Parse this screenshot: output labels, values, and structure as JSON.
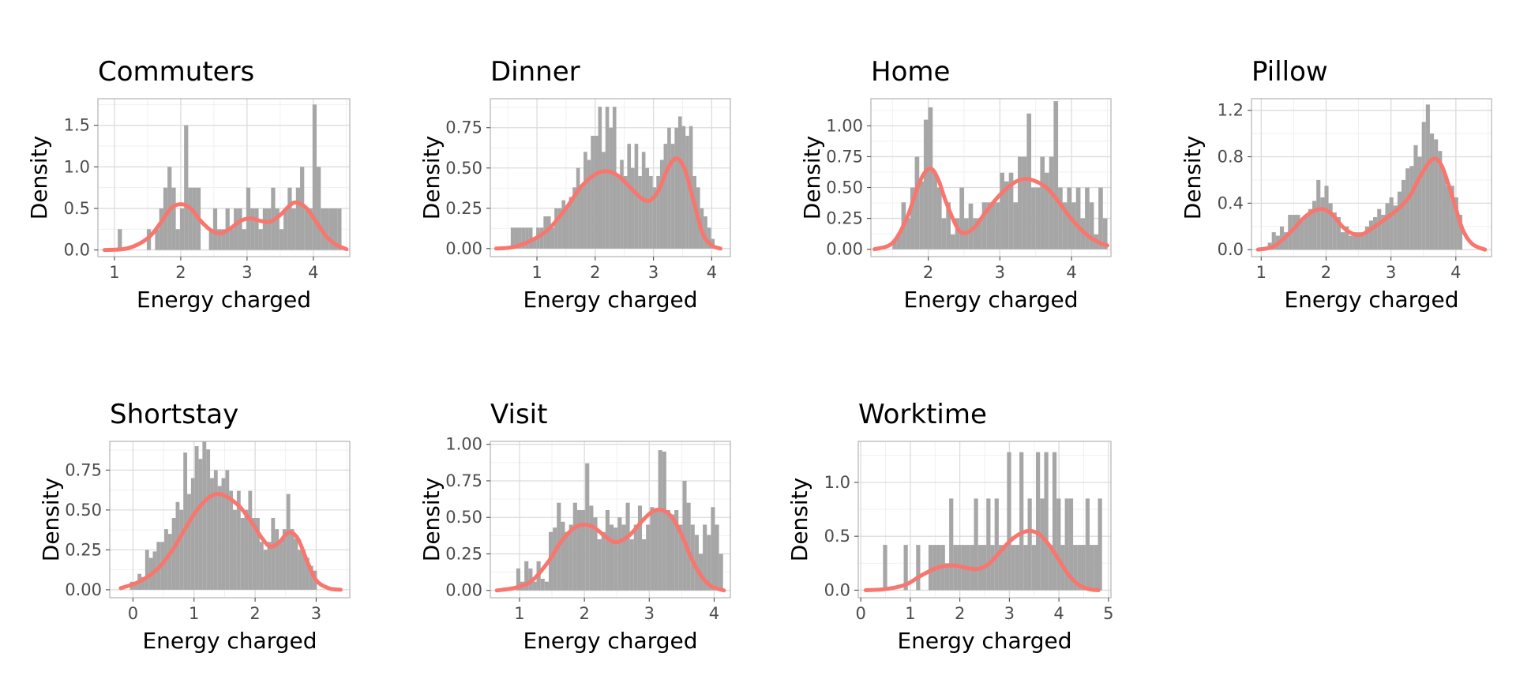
{
  "colors": {
    "bars": "#a6a6a6",
    "density": "#f8766d",
    "background": "#ffffff"
  },
  "chart_data": [
    {
      "type": "histogram+density",
      "title": "Commuters",
      "xlabel": "Energy charged",
      "ylabel": "Density",
      "xlim": [
        0.75,
        4.55
      ],
      "ylim": [
        -0.08,
        1.82
      ],
      "xticks": [
        1,
        2,
        3,
        4
      ],
      "xtick_labels": [
        "1",
        "2",
        "3",
        "4"
      ],
      "yticks": [
        0,
        0.5,
        1.0,
        1.5
      ],
      "ytick_labels": [
        "0.0",
        "0.5",
        "1.0",
        "1.5"
      ],
      "bins": {
        "start": 1.05,
        "width": 0.0625,
        "counts": [
          0.25,
          0,
          0,
          0,
          0,
          0,
          0,
          0.25,
          0,
          0.25,
          0.5,
          0.75,
          1.0,
          0.75,
          0.25,
          0.5,
          1.5,
          0.75,
          0.75,
          0.75,
          0,
          0,
          0.25,
          0.5,
          0.25,
          0.25,
          0.5,
          0.25,
          0.5,
          0.5,
          0.25,
          0.75,
          0.5,
          0.5,
          0.25,
          0.5,
          0.5,
          0.75,
          0.5,
          0.25,
          0.5,
          0.75,
          0.5,
          0.75,
          1.0,
          0.5,
          0.5,
          1.75,
          1.0,
          0.5,
          0.5,
          0.5,
          0.5,
          0.5
        ]
      },
      "density": {
        "x": [
          0.85,
          1.2,
          1.5,
          1.7,
          1.85,
          2.0,
          2.15,
          2.3,
          2.45,
          2.6,
          2.75,
          2.9,
          3.05,
          3.2,
          3.35,
          3.5,
          3.65,
          3.75,
          3.9,
          4.05,
          4.2,
          4.35,
          4.5
        ],
        "y": [
          0.0,
          0.02,
          0.14,
          0.33,
          0.5,
          0.55,
          0.5,
          0.35,
          0.24,
          0.2,
          0.26,
          0.35,
          0.38,
          0.35,
          0.34,
          0.42,
          0.54,
          0.57,
          0.5,
          0.33,
          0.16,
          0.06,
          0.01
        ]
      }
    },
    {
      "type": "histogram+density",
      "title": "Dinner",
      "xlabel": "Energy charged",
      "ylabel": "Density",
      "xlim": [
        0.2,
        4.32
      ],
      "ylim": [
        -0.05,
        0.93
      ],
      "xticks": [
        1,
        2,
        3,
        4
      ],
      "xtick_labels": [
        "1",
        "2",
        "3",
        "4"
      ],
      "yticks": [
        0,
        0.25,
        0.5,
        0.75
      ],
      "ytick_labels": [
        "0.00",
        "0.25",
        "0.50",
        "0.75"
      ],
      "bins": {
        "start": 0.55,
        "width": 0.0625,
        "counts": [
          0.13,
          0.13,
          0.13,
          0.13,
          0.13,
          0.13,
          0.06,
          0.13,
          0.13,
          0.2,
          0.2,
          0.13,
          0.25,
          0.25,
          0.3,
          0.25,
          0.32,
          0.38,
          0.5,
          0.38,
          0.6,
          0.55,
          0.7,
          0.7,
          0.88,
          0.6,
          0.88,
          0.75,
          0.88,
          0.45,
          0.55,
          0.45,
          0.65,
          0.5,
          0.65,
          0.45,
          0.6,
          0.5,
          0.45,
          0.38,
          0.45,
          0.55,
          0.65,
          0.75,
          0.65,
          0.75,
          0.82,
          0.76,
          0.7,
          0.76,
          0.45,
          0.38,
          0.25,
          0.2,
          0.13,
          0.06
        ]
      },
      "density": {
        "x": [
          0.3,
          0.6,
          0.9,
          1.2,
          1.5,
          1.75,
          2.0,
          2.2,
          2.4,
          2.6,
          2.8,
          2.95,
          3.1,
          3.25,
          3.4,
          3.55,
          3.7,
          3.85,
          4.0,
          4.15
        ],
        "y": [
          0.0,
          0.01,
          0.05,
          0.12,
          0.25,
          0.38,
          0.46,
          0.48,
          0.45,
          0.38,
          0.31,
          0.3,
          0.37,
          0.5,
          0.56,
          0.48,
          0.28,
          0.09,
          0.02,
          0.0
        ]
      }
    },
    {
      "type": "histogram+density",
      "title": "Home",
      "xlabel": "Energy charged",
      "ylabel": "Density",
      "xlim": [
        1.2,
        4.55
      ],
      "ylim": [
        -0.06,
        1.22
      ],
      "xticks": [
        2,
        3,
        4
      ],
      "xtick_labels": [
        "2",
        "3",
        "4"
      ],
      "yticks": [
        0,
        0.25,
        0.5,
        0.75,
        1.0
      ],
      "ytick_labels": [
        "0.00",
        "0.25",
        "0.50",
        "0.75",
        "1.00"
      ],
      "bins": {
        "start": 1.5,
        "width": 0.0625,
        "counts": [
          0.07,
          0.13,
          0.38,
          0.25,
          0.5,
          0.75,
          0.55,
          1.05,
          1.15,
          0.62,
          0.5,
          0.25,
          0.38,
          0.12,
          0.25,
          0.5,
          0.25,
          0.37,
          0.25,
          0.25,
          0.38,
          0.38,
          0.38,
          0.38,
          0.62,
          0.55,
          0.62,
          0.38,
          0.75,
          0.75,
          1.1,
          0.5,
          0.5,
          0.75,
          0.62,
          0.75,
          1.2,
          0.5,
          0.38,
          0.5,
          0.38,
          0.5,
          0.25,
          0.5,
          0.38,
          0.12,
          0.5,
          0.25
        ]
      },
      "density": {
        "x": [
          1.25,
          1.5,
          1.7,
          1.85,
          1.95,
          2.05,
          2.15,
          2.25,
          2.4,
          2.5,
          2.65,
          2.8,
          3.0,
          3.2,
          3.35,
          3.5,
          3.65,
          3.8,
          3.95,
          4.1,
          4.25,
          4.4,
          4.5
        ],
        "y": [
          0.0,
          0.05,
          0.25,
          0.5,
          0.62,
          0.65,
          0.55,
          0.38,
          0.18,
          0.13,
          0.18,
          0.3,
          0.44,
          0.54,
          0.57,
          0.55,
          0.5,
          0.4,
          0.28,
          0.18,
          0.1,
          0.05,
          0.03
        ]
      }
    },
    {
      "type": "histogram+density",
      "title": "Pillow",
      "xlabel": "Energy charged",
      "ylabel": "Density",
      "xlim": [
        0.85,
        4.55
      ],
      "ylim": [
        -0.06,
        1.3
      ],
      "xticks": [
        1,
        2,
        3,
        4
      ],
      "xtick_labels": [
        "1",
        "2",
        "3",
        "4"
      ],
      "yticks": [
        0,
        0.4,
        0.8,
        1.2
      ],
      "ytick_labels": [
        "0.0",
        "0.4",
        "0.8",
        "1.2"
      ],
      "bins": {
        "start": 1.1,
        "width": 0.0625,
        "counts": [
          0.06,
          0.15,
          0.12,
          0.2,
          0.15,
          0.3,
          0.3,
          0.3,
          0.25,
          0.3,
          0.35,
          0.42,
          0.6,
          0.45,
          0.55,
          0.4,
          0.32,
          0.28,
          0.15,
          0.2,
          0.12,
          0.15,
          0.15,
          0.15,
          0.2,
          0.25,
          0.28,
          0.35,
          0.3,
          0.4,
          0.45,
          0.38,
          0.5,
          0.6,
          0.7,
          0.72,
          0.9,
          0.8,
          1.1,
          1.25,
          1.0,
          0.95,
          0.85,
          0.68,
          0.55,
          0.55,
          0.45,
          0.3
        ]
      },
      "density": {
        "x": [
          0.95,
          1.2,
          1.45,
          1.65,
          1.8,
          1.95,
          2.1,
          2.25,
          2.4,
          2.55,
          2.75,
          2.95,
          3.15,
          3.3,
          3.45,
          3.6,
          3.7,
          3.8,
          3.95,
          4.1,
          4.25,
          4.45
        ],
        "y": [
          0.0,
          0.03,
          0.15,
          0.27,
          0.33,
          0.35,
          0.3,
          0.2,
          0.14,
          0.13,
          0.2,
          0.28,
          0.37,
          0.47,
          0.63,
          0.76,
          0.78,
          0.7,
          0.45,
          0.18,
          0.05,
          0.0
        ]
      }
    },
    {
      "type": "histogram+density",
      "title": "Shortstay",
      "xlabel": "Energy charged",
      "ylabel": "Density",
      "xlim": [
        -0.38,
        3.55
      ],
      "ylim": [
        -0.05,
        0.93
      ],
      "xticks": [
        0,
        1,
        2,
        3
      ],
      "xtick_labels": [
        "0",
        "1",
        "2",
        "3"
      ],
      "yticks": [
        0,
        0.25,
        0.5,
        0.75
      ],
      "ytick_labels": [
        "0.00",
        "0.25",
        "0.50",
        "0.75"
      ],
      "bins": {
        "start": -0.05,
        "width": 0.0625,
        "counts": [
          0.05,
          0.05,
          0.1,
          0.08,
          0.25,
          0.2,
          0.24,
          0.3,
          0.3,
          0.38,
          0.35,
          0.45,
          0.55,
          0.5,
          0.86,
          0.6,
          0.7,
          0.9,
          0.82,
          0.93,
          0.88,
          0.7,
          0.75,
          0.65,
          0.7,
          0.75,
          0.62,
          0.5,
          0.62,
          0.45,
          0.5,
          0.62,
          0.45,
          0.45,
          0.3,
          0.25,
          0.3,
          0.45,
          0.38,
          0.3,
          0.38,
          0.6,
          0.38,
          0.32,
          0.25,
          0.25,
          0.2,
          0.15,
          0.12
        ]
      },
      "density": {
        "x": [
          -0.2,
          0.1,
          0.4,
          0.65,
          0.85,
          1.05,
          1.25,
          1.4,
          1.55,
          1.75,
          1.95,
          2.1,
          2.25,
          2.4,
          2.55,
          2.7,
          2.85,
          3.0,
          3.2,
          3.4
        ],
        "y": [
          0.01,
          0.05,
          0.13,
          0.25,
          0.38,
          0.5,
          0.58,
          0.6,
          0.58,
          0.52,
          0.42,
          0.33,
          0.27,
          0.3,
          0.36,
          0.32,
          0.18,
          0.06,
          0.01,
          0.0
        ]
      }
    },
    {
      "type": "histogram+density",
      "title": "Visit",
      "xlabel": "Energy charged",
      "ylabel": "Density",
      "xlim": [
        0.55,
        4.25
      ],
      "ylim": [
        -0.05,
        1.02
      ],
      "xticks": [
        1,
        2,
        3,
        4
      ],
      "xtick_labels": [
        "1",
        "2",
        "3",
        "4"
      ],
      "yticks": [
        0,
        0.25,
        0.5,
        0.75,
        1.0
      ],
      "ytick_labels": [
        "0.00",
        "0.25",
        "0.50",
        "0.75",
        "1.00"
      ],
      "bins": {
        "start": 0.95,
        "width": 0.0625,
        "counts": [
          0.15,
          0.06,
          0.2,
          0.15,
          0.06,
          0.2,
          0.08,
          0.06,
          0.4,
          0.43,
          0.6,
          0.47,
          0.4,
          0.45,
          0.6,
          0.55,
          0.55,
          0.87,
          0.58,
          0.5,
          0.35,
          0.4,
          0.55,
          0.45,
          0.43,
          0.5,
          0.45,
          0.6,
          0.35,
          0.45,
          0.58,
          0.35,
          0.45,
          0.57,
          0.55,
          0.96,
          0.95,
          0.55,
          0.52,
          0.55,
          0.45,
          0.75,
          0.6,
          0.45,
          0.38,
          0.25,
          0.45,
          0.38,
          0.57,
          0.45,
          0.25
        ]
      },
      "density": {
        "x": [
          0.65,
          0.95,
          1.2,
          1.45,
          1.65,
          1.85,
          2.0,
          2.15,
          2.35,
          2.5,
          2.7,
          2.9,
          3.05,
          3.2,
          3.35,
          3.5,
          3.65,
          3.8,
          3.95,
          4.15
        ],
        "y": [
          0.0,
          0.02,
          0.07,
          0.2,
          0.34,
          0.43,
          0.45,
          0.43,
          0.36,
          0.33,
          0.38,
          0.48,
          0.54,
          0.55,
          0.5,
          0.38,
          0.22,
          0.1,
          0.03,
          0.0
        ]
      }
    },
    {
      "type": "histogram+density",
      "title": "Worktime",
      "xlabel": "Energy charged",
      "ylabel": "Density",
      "xlim": [
        -0.05,
        5.05
      ],
      "ylim": [
        -0.07,
        1.38
      ],
      "xticks": [
        0,
        1,
        2,
        3,
        4,
        5
      ],
      "xtick_labels": [
        "0",
        "1",
        "2",
        "3",
        "4",
        "5"
      ],
      "yticks": [
        0,
        0.5,
        1.0
      ],
      "ytick_labels": [
        "0.0",
        "0.5",
        "1.0"
      ],
      "bins": {
        "start": 0.45,
        "width": 0.0834,
        "counts": [
          0.42,
          0,
          0.0,
          0,
          0,
          0.42,
          0,
          0,
          0.42,
          0,
          0,
          0.42,
          0.42,
          0.42,
          0.42,
          0.25,
          0.85,
          0.42,
          0.42,
          0.42,
          0.42,
          0.42,
          0.85,
          0.42,
          0.42,
          0.85,
          0.42,
          0.85,
          0.42,
          0.42,
          1.28,
          0.42,
          0.42,
          1.28,
          0.42,
          0.85,
          0.42,
          1.28,
          0.85,
          1.28,
          0.42,
          1.28,
          0.85,
          0.42,
          0.85,
          0.85,
          0.42,
          0.42,
          0.42,
          0.85,
          0.42,
          0.42,
          0.85
        ]
      },
      "density": {
        "x": [
          0.1,
          0.5,
          0.9,
          1.2,
          1.5,
          1.8,
          2.0,
          2.2,
          2.4,
          2.6,
          2.8,
          3.0,
          3.2,
          3.4,
          3.6,
          3.8,
          4.0,
          4.2,
          4.4,
          4.6,
          4.8
        ],
        "y": [
          0.0,
          0.01,
          0.05,
          0.13,
          0.2,
          0.23,
          0.22,
          0.2,
          0.2,
          0.25,
          0.35,
          0.45,
          0.52,
          0.55,
          0.52,
          0.42,
          0.28,
          0.14,
          0.05,
          0.01,
          0.0
        ]
      }
    }
  ]
}
